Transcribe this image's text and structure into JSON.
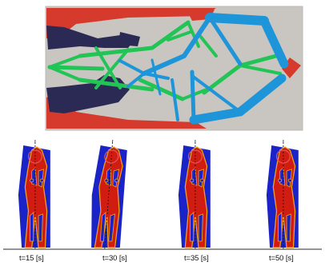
{
  "colors": {
    "background": "#c9c6c2",
    "red": "#d63a2c",
    "navy": "#2b2a55",
    "green": "#22c456",
    "blue": "#1e95d8",
    "frame_blue": "#1a23c8",
    "frame_red": "#d11c12",
    "outline": "#f2a21c",
    "marker": "#e25555",
    "baseline": "#555555"
  },
  "frames": [
    {
      "label": "t=15 [s]"
    },
    {
      "label": "t=30 [s]"
    },
    {
      "label": "t=35 [s]"
    },
    {
      "label": "t=50 [s]"
    }
  ]
}
